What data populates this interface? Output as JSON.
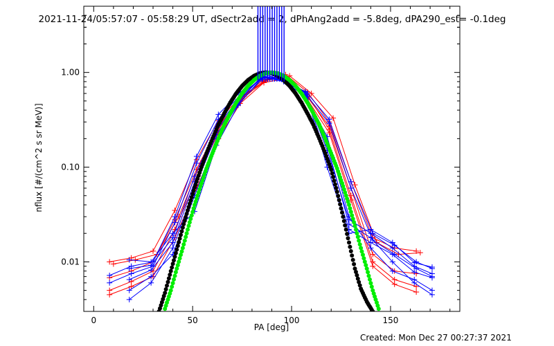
{
  "chart_data": {
    "type": "line",
    "title": "2021-11-24/05:57:07 - 05:58:29 UT, dSectr2add = 2, dPhAng2add = -5.8deg, dPA290_est= -0.1deg",
    "xlabel": "PA [deg]",
    "ylabel": "nflux [#/(cm^2 s sr MeV)]",
    "xlim": [
      -5,
      185
    ],
    "ylim": [
      0.003,
      5.0
    ],
    "yscale": "log",
    "xticks": [
      "0",
      "50",
      "100",
      "150"
    ],
    "xtick_values": [
      0,
      50,
      100,
      150
    ],
    "yticks": [
      "0.01",
      "0.10",
      "1.00"
    ],
    "ytick_values": [
      0.01,
      0.1,
      1.0
    ],
    "grid": false,
    "footer": "Created: Mon Dec 27 00:27:37 2021",
    "colors": {
      "red": "#ff0000",
      "blue": "#0000ff",
      "green": "#00ee00",
      "black": "#000000"
    },
    "series": [
      {
        "color": "red",
        "style": "plus-line",
        "x": [
          8,
          19,
          30,
          41,
          52,
          63,
          74,
          86,
          97,
          108,
          119,
          130,
          141,
          152,
          163
        ],
        "y": [
          0.01,
          0.011,
          0.013,
          0.035,
          0.12,
          0.31,
          0.55,
          0.8,
          0.95,
          0.62,
          0.3,
          0.07,
          0.018,
          0.014,
          0.013
        ]
      },
      {
        "color": "red",
        "style": "plus-line",
        "x": [
          8,
          19,
          30,
          41,
          52,
          63,
          74,
          86,
          97,
          108,
          119,
          130,
          141,
          152,
          163
        ],
        "y": [
          0.0068,
          0.008,
          0.01,
          0.028,
          0.095,
          0.27,
          0.52,
          0.85,
          0.9,
          0.55,
          0.27,
          0.06,
          0.012,
          0.008,
          0.0075
        ]
      },
      {
        "color": "red",
        "style": "plus-line",
        "x": [
          8,
          19,
          30,
          41,
          52,
          63,
          74,
          86,
          97,
          108,
          119,
          130,
          141,
          152,
          163
        ],
        "y": [
          0.005,
          0.0062,
          0.008,
          0.022,
          0.075,
          0.23,
          0.5,
          0.82,
          0.88,
          0.58,
          0.25,
          0.05,
          0.01,
          0.0065,
          0.0055
        ]
      },
      {
        "color": "red",
        "style": "plus-line",
        "x": [
          8,
          19,
          30,
          41,
          52,
          63,
          74,
          86,
          97,
          108,
          119,
          130,
          141,
          152,
          163
        ],
        "y": [
          0.0045,
          0.0055,
          0.007,
          0.018,
          0.06,
          0.2,
          0.47,
          0.78,
          0.86,
          0.52,
          0.23,
          0.045,
          0.009,
          0.0058,
          0.0048
        ]
      },
      {
        "color": "red",
        "style": "plus-line",
        "x": [
          10,
          21,
          32,
          43,
          54,
          65,
          76,
          88,
          99,
          110,
          121,
          132,
          143,
          154,
          165
        ],
        "y": [
          0.0095,
          0.0105,
          0.012,
          0.03,
          0.11,
          0.29,
          0.56,
          0.84,
          0.92,
          0.6,
          0.33,
          0.065,
          0.016,
          0.012,
          0.0125
        ]
      },
      {
        "color": "blue",
        "style": "plus-line",
        "x": [
          8,
          19,
          30,
          41,
          52,
          63,
          74,
          86,
          97,
          108,
          119,
          130,
          141,
          152,
          163,
          171
        ],
        "y": [
          0.0072,
          0.009,
          0.01,
          0.03,
          0.13,
          0.36,
          0.62,
          0.95,
          0.82,
          0.6,
          0.32,
          0.07,
          0.02,
          0.015,
          0.01,
          0.0085
        ]
      },
      {
        "color": "blue",
        "style": "plus-line",
        "x": [
          8,
          19,
          30,
          41,
          52,
          63,
          74,
          86,
          97,
          108,
          119,
          130,
          141,
          152,
          163,
          171
        ],
        "y": [
          0.006,
          0.0075,
          0.009,
          0.026,
          0.11,
          0.32,
          0.58,
          0.9,
          0.8,
          0.56,
          0.29,
          0.06,
          0.017,
          0.012,
          0.0085,
          0.007
        ]
      },
      {
        "color": "blue",
        "style": "plus-line",
        "x": [
          18,
          29,
          40,
          51,
          62,
          73,
          85,
          96,
          107,
          118,
          129,
          140,
          151,
          162,
          171
        ],
        "y": [
          0.0105,
          0.01,
          0.02,
          0.034,
          0.17,
          0.45,
          0.88,
          0.86,
          0.62,
          0.1,
          0.02,
          0.022,
          0.016,
          0.0098,
          0.0088
        ]
      },
      {
        "color": "blue",
        "style": "plus-line",
        "x": [
          18,
          29,
          40,
          51,
          62,
          73,
          85,
          96,
          107,
          118,
          129,
          140,
          151,
          162,
          171
        ],
        "y": [
          0.004,
          0.006,
          0.014,
          0.06,
          0.22,
          0.48,
          0.92,
          0.84,
          0.58,
          0.17,
          0.025,
          0.018,
          0.01,
          0.006,
          0.0045
        ]
      },
      {
        "color": "blue",
        "style": "plus-line",
        "x": [
          18,
          29,
          40,
          51,
          62,
          73,
          85,
          96,
          107,
          118,
          129,
          140,
          151,
          162,
          171
        ],
        "y": [
          0.0065,
          0.0082,
          0.016,
          0.07,
          0.24,
          0.5,
          0.89,
          0.82,
          0.55,
          0.21,
          0.03,
          0.014,
          0.008,
          0.0065,
          0.005
        ]
      },
      {
        "color": "blue",
        "style": "plus-line",
        "x": [
          18,
          29,
          40,
          51,
          62,
          73,
          85,
          96,
          107,
          118,
          129,
          140,
          151,
          162,
          171
        ],
        "y": [
          0.0085,
          0.0092,
          0.018,
          0.08,
          0.26,
          0.52,
          0.9,
          0.8,
          0.63,
          0.12,
          0.022,
          0.016,
          0.012,
          0.0078,
          0.0068
        ]
      },
      {
        "color": "blue",
        "style": "plus-line",
        "x": [
          18,
          29,
          40,
          51,
          62,
          73,
          85,
          96,
          107,
          118,
          129,
          140,
          151,
          162,
          171
        ],
        "y": [
          0.005,
          0.007,
          0.012,
          0.05,
          0.2,
          0.46,
          0.85,
          0.85,
          0.6,
          0.15,
          0.028,
          0.02,
          0.014,
          0.009,
          0.0075
        ]
      },
      {
        "color": "black",
        "style": "dots",
        "x": [
          33,
          36,
          39,
          42,
          45,
          48,
          51,
          54,
          57,
          60,
          63,
          66,
          69,
          72,
          75,
          78,
          81,
          84,
          87,
          90,
          93,
          96,
          99,
          102,
          105,
          108,
          111,
          114,
          117,
          120,
          123,
          126,
          129,
          132,
          135,
          138,
          141
        ],
        "y": [
          0.003,
          0.0047,
          0.008,
          0.0135,
          0.023,
          0.038,
          0.061,
          0.094,
          0.14,
          0.2,
          0.28,
          0.37,
          0.48,
          0.6,
          0.72,
          0.83,
          0.92,
          0.98,
          1.0,
          0.98,
          0.92,
          0.83,
          0.72,
          0.6,
          0.48,
          0.37,
          0.28,
          0.2,
          0.14,
          0.094,
          0.055,
          0.03,
          0.016,
          0.0085,
          0.0052,
          0.0038,
          0.003
        ]
      },
      {
        "color": "green",
        "style": "dots",
        "x": [
          36,
          39,
          42,
          45,
          48,
          51,
          54,
          57,
          60,
          63,
          66,
          69,
          72,
          75,
          78,
          81,
          84,
          87,
          90,
          93,
          96,
          99,
          102,
          105,
          108,
          111,
          114,
          117,
          120,
          123,
          126,
          129,
          132,
          135,
          138,
          141,
          144
        ],
        "y": [
          0.0032,
          0.005,
          0.0085,
          0.014,
          0.024,
          0.04,
          0.063,
          0.097,
          0.14,
          0.2,
          0.28,
          0.37,
          0.48,
          0.6,
          0.72,
          0.83,
          0.92,
          0.98,
          1.0,
          0.98,
          0.92,
          0.83,
          0.72,
          0.6,
          0.48,
          0.37,
          0.28,
          0.2,
          0.14,
          0.097,
          0.063,
          0.04,
          0.024,
          0.014,
          0.0085,
          0.005,
          0.0032
        ]
      },
      {
        "color": "blue",
        "style": "spikes",
        "x": [
          83.0,
          84.2,
          85.4,
          86.6,
          87.8,
          89.0,
          90.2,
          91.4,
          92.6,
          93.8,
          95.0,
          96.2
        ],
        "y_from": 0.8,
        "y_to": 5.0
      }
    ]
  }
}
